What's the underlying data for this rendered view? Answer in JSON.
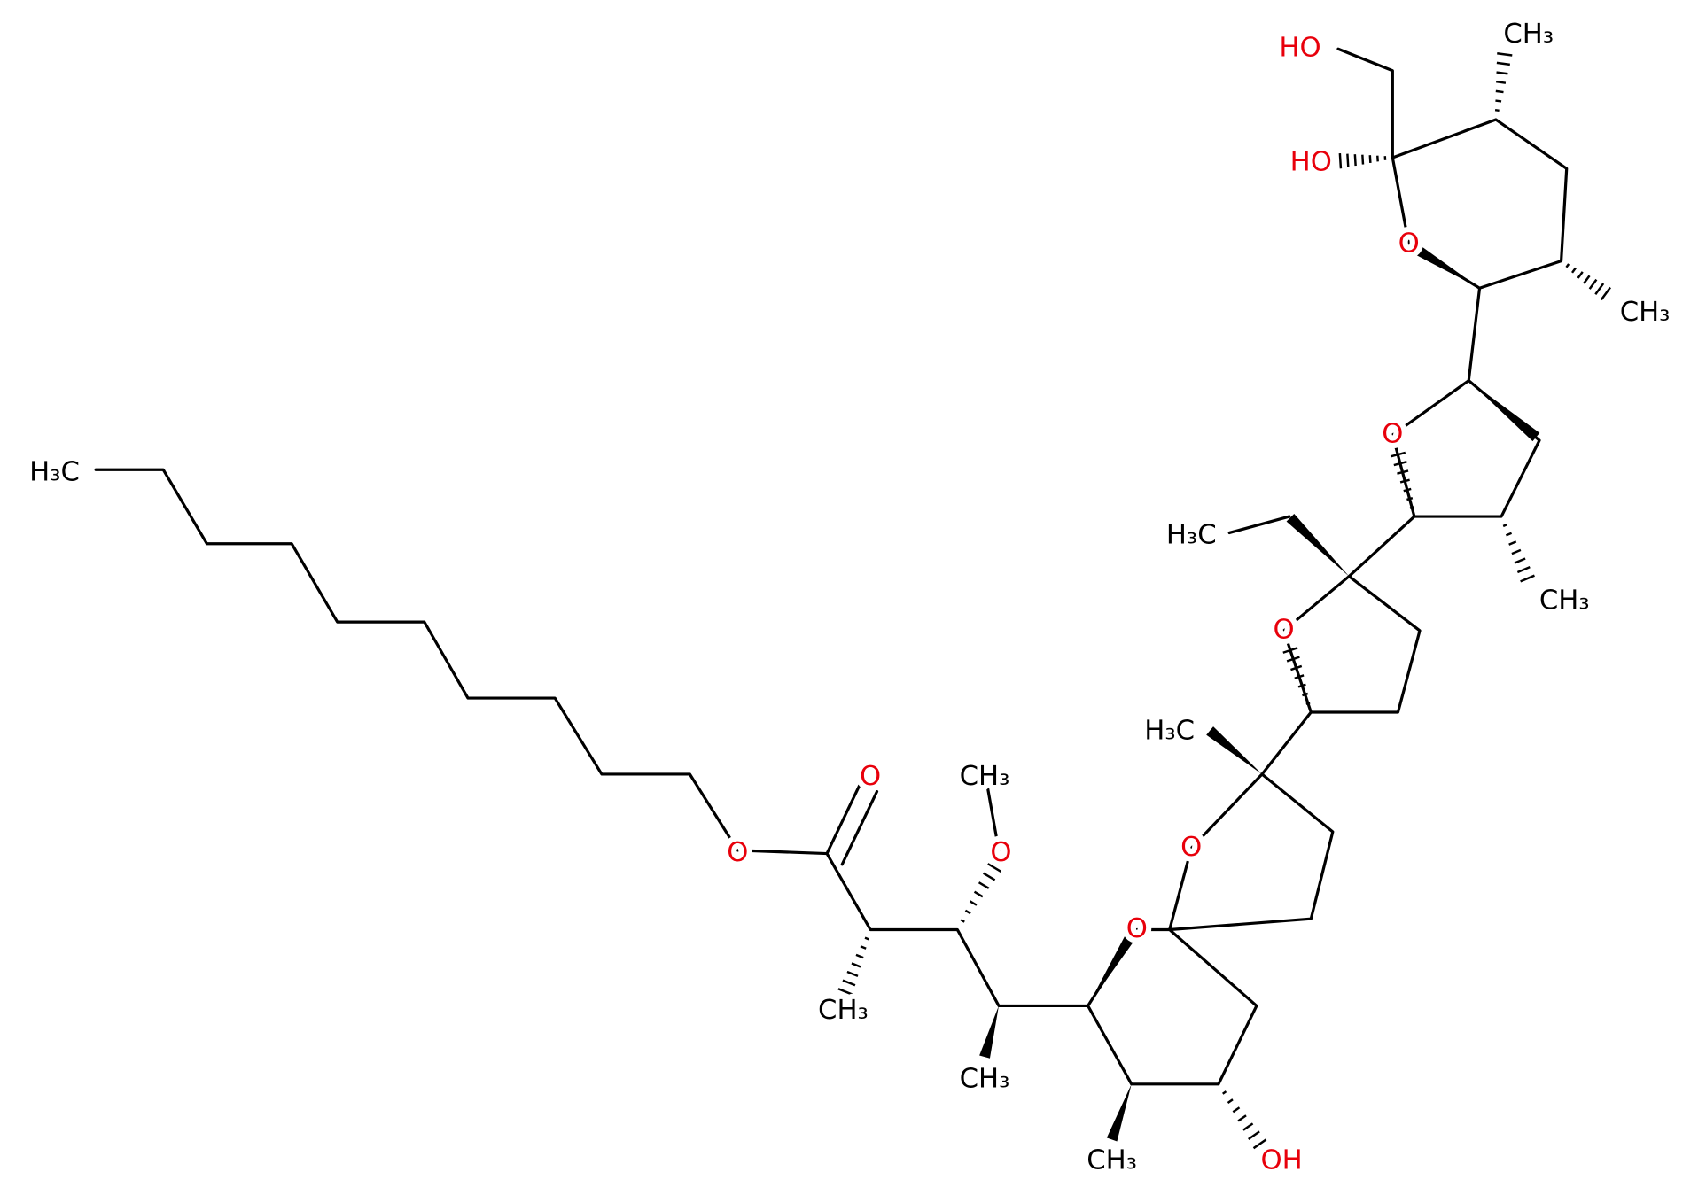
{
  "atoms": [
    {
      "label": "H₃C"
    },
    {
      "label": "O"
    },
    {
      "label": "O"
    },
    {
      "label": "CH₃"
    },
    {
      "label": "O"
    },
    {
      "label": "CH₃"
    },
    {
      "label": "CH₃"
    },
    {
      "label": "O"
    },
    {
      "label": "CH₃"
    },
    {
      "label": "OH"
    },
    {
      "label": "O"
    },
    {
      "label": "H₃C"
    },
    {
      "label": "O"
    },
    {
      "label": "H₃C"
    },
    {
      "label": "O"
    },
    {
      "label": "CH₃"
    },
    {
      "label": "O"
    },
    {
      "label": "CH₃"
    },
    {
      "label": "CH₃"
    },
    {
      "label": "HO"
    },
    {
      "label": "HO"
    }
  ]
}
